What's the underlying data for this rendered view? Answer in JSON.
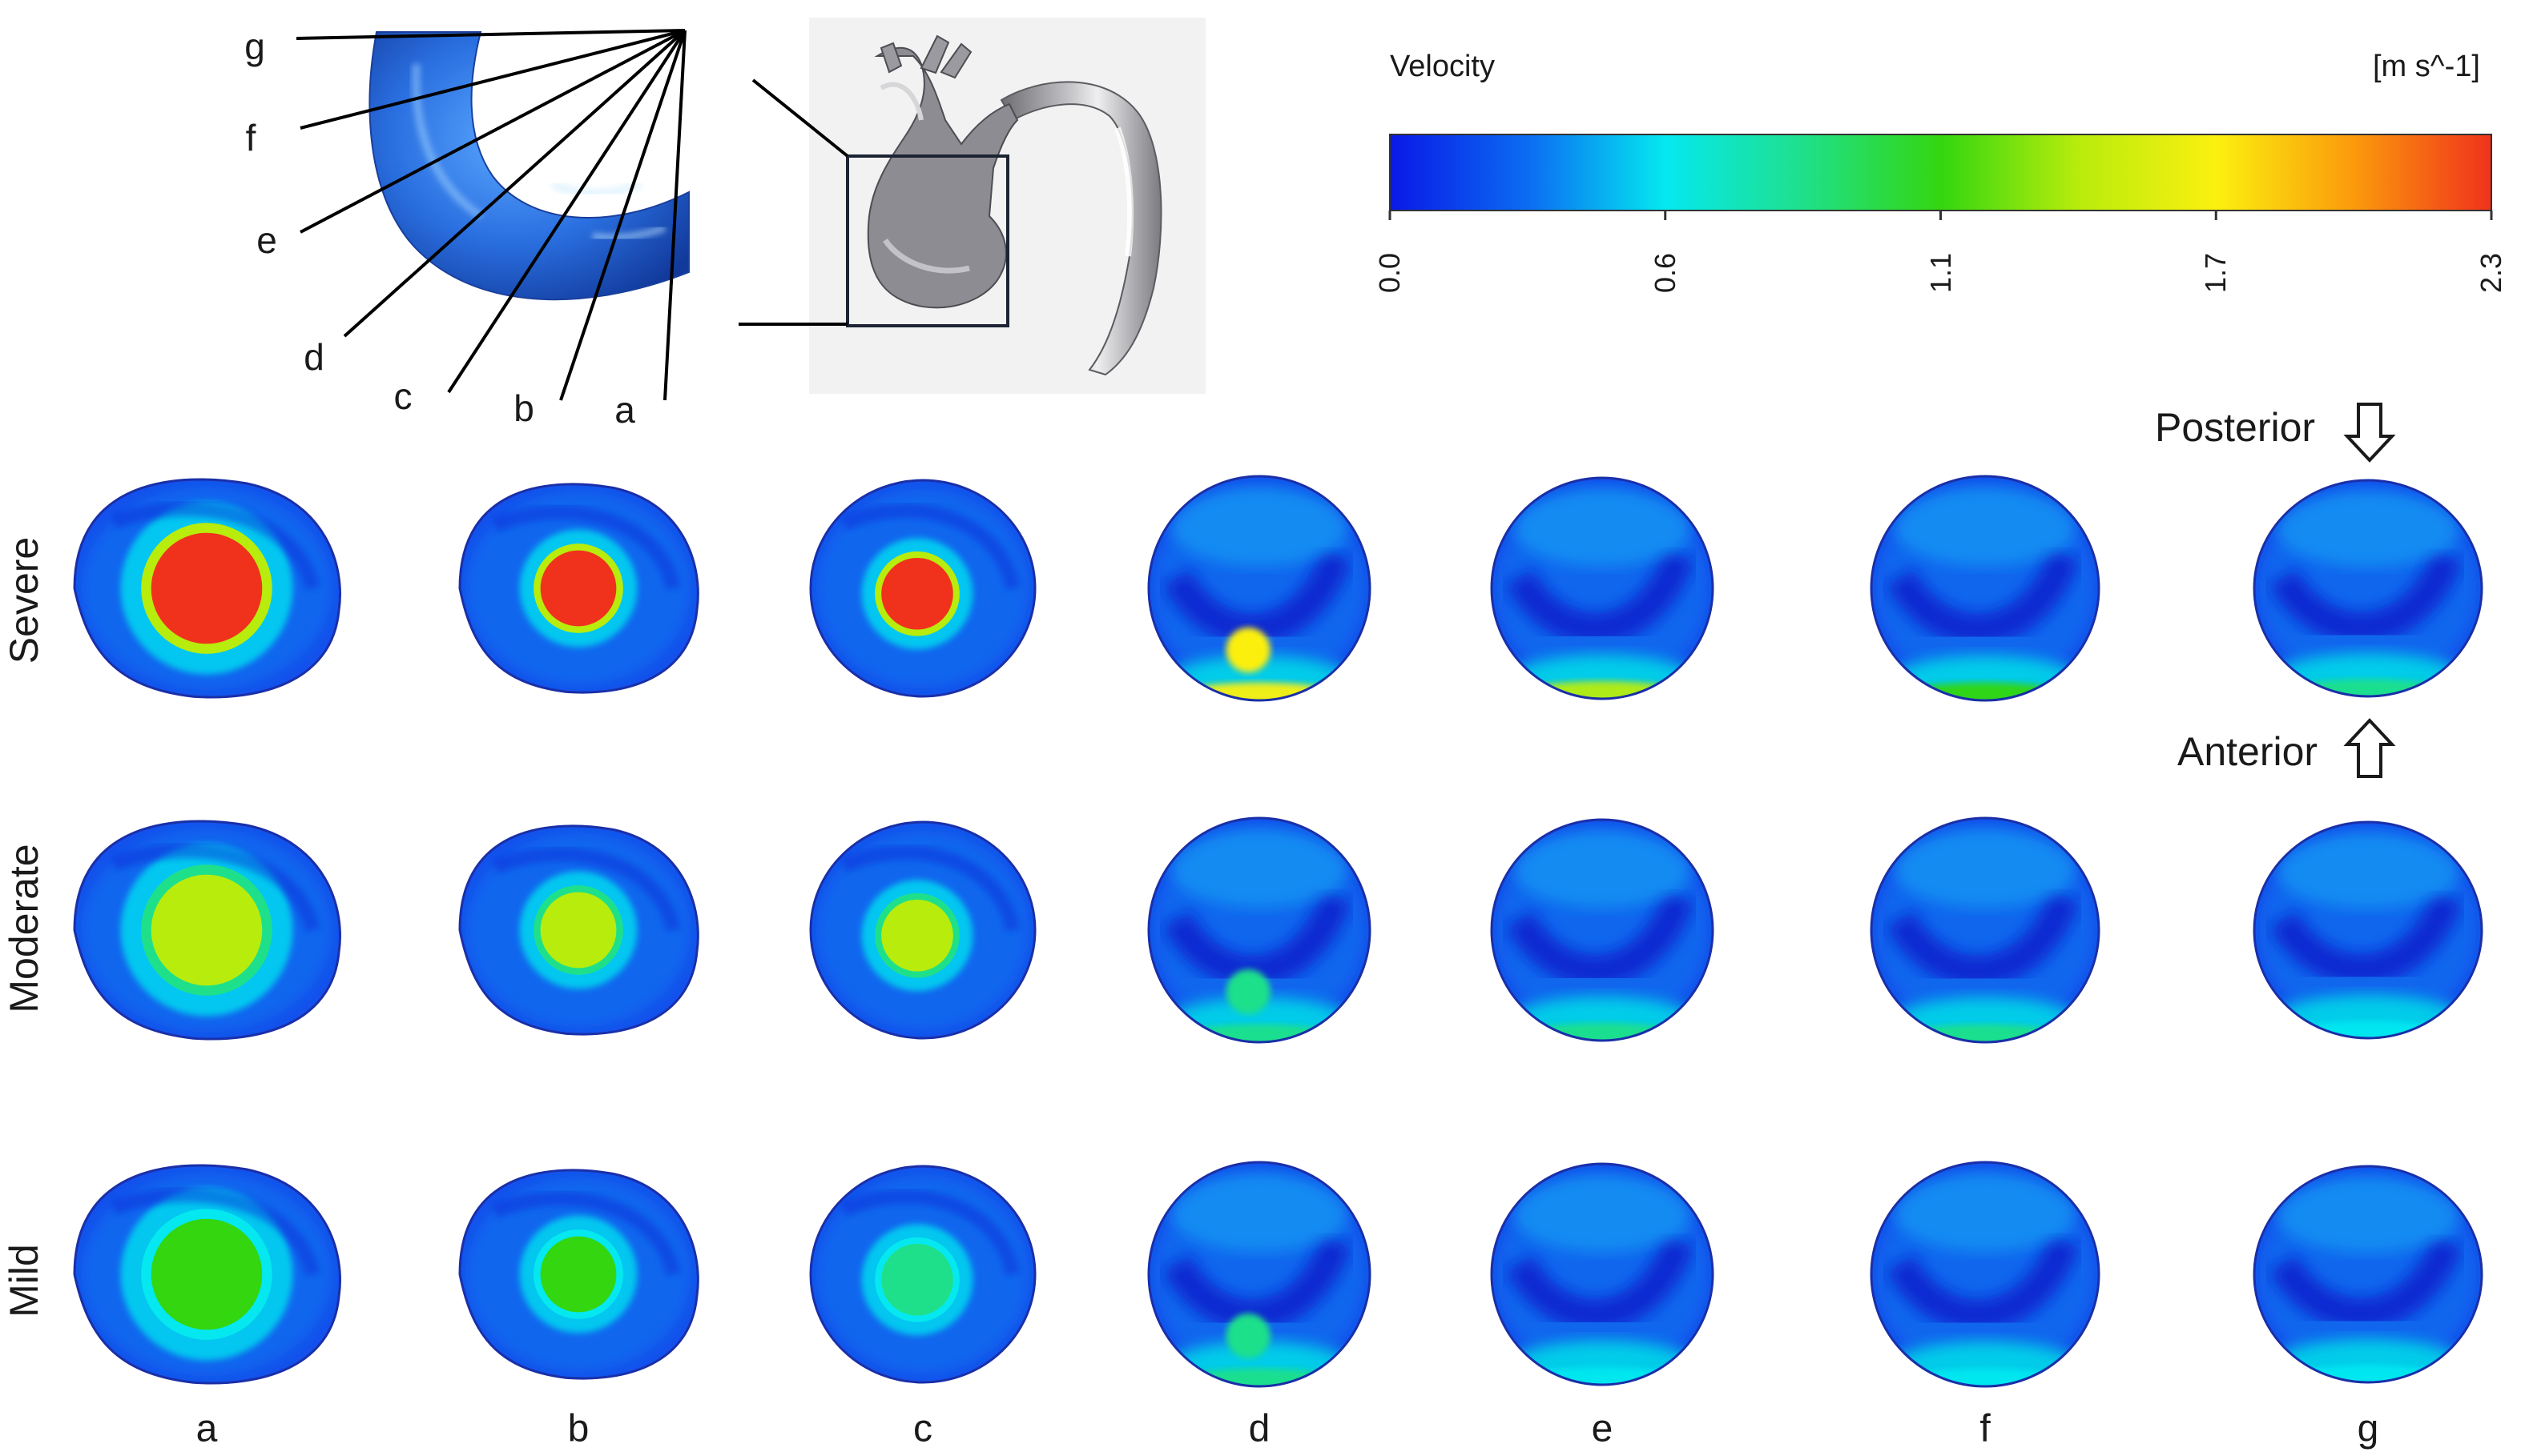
{
  "section_labels": [
    "g",
    "f",
    "e",
    "d",
    "c",
    "b",
    "a"
  ],
  "colorbar": {
    "title": "Velocity",
    "unit": "[m s^-1]",
    "ticks": [
      "0.0",
      "0.6",
      "1.1",
      "1.7",
      "2.3"
    ],
    "stops": [
      "#0a18e6",
      "#0b6cf2",
      "#05e8f0",
      "#1fe08a",
      "#33d60f",
      "#b8ec0c",
      "#fbf00f",
      "#fb9a0c",
      "#f0321c"
    ]
  },
  "directions": {
    "posterior": "Posterior",
    "anterior": "Anterior"
  },
  "rows": [
    "Severe",
    "Moderate",
    "Mild"
  ],
  "columns": [
    "a",
    "b",
    "c",
    "d",
    "e",
    "f",
    "g"
  ],
  "contour_peak_velocity": {
    "Severe": [
      2.3,
      2.3,
      2.3,
      1.8,
      1.3,
      1.1,
      1.0
    ],
    "Moderate": [
      1.4,
      1.4,
      1.4,
      1.0,
      0.9,
      0.8,
      0.7
    ],
    "Mild": [
      1.1,
      1.1,
      1.0,
      0.8,
      0.7,
      0.7,
      0.7
    ]
  }
}
